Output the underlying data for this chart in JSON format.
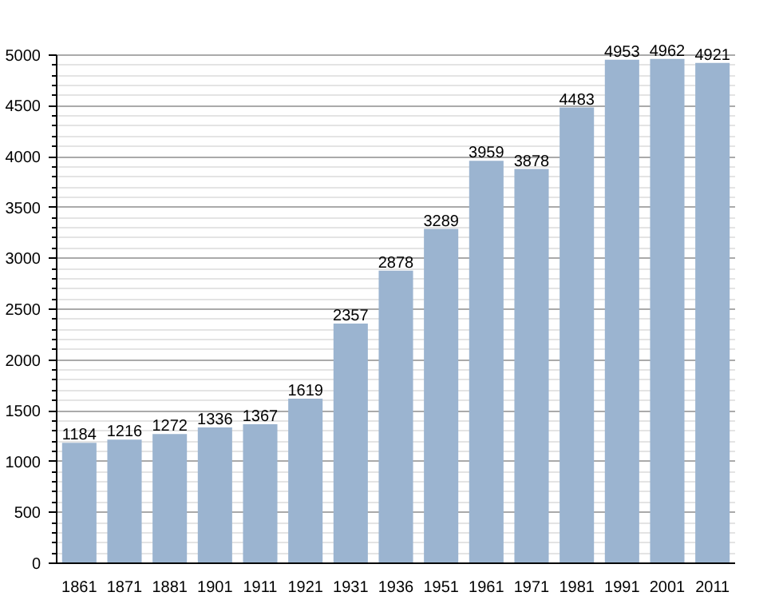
{
  "chart_data": {
    "type": "bar",
    "categories": [
      "1861",
      "1871",
      "1881",
      "1901",
      "1911",
      "1921",
      "1931",
      "1936",
      "1951",
      "1961",
      "1971",
      "1981",
      "1991",
      "2001",
      "2011"
    ],
    "values": [
      1184,
      1216,
      1272,
      1336,
      1367,
      1619,
      2357,
      2878,
      3289,
      3959,
      3878,
      4483,
      4953,
      4962,
      4921
    ],
    "color": "#9bb4d0",
    "ylim": [
      0,
      5000
    ],
    "yticks": [
      0,
      500,
      1000,
      1500,
      2000,
      2500,
      3000,
      3500,
      4000,
      4500,
      5000
    ],
    "grid": "y",
    "data_labels": true
  }
}
